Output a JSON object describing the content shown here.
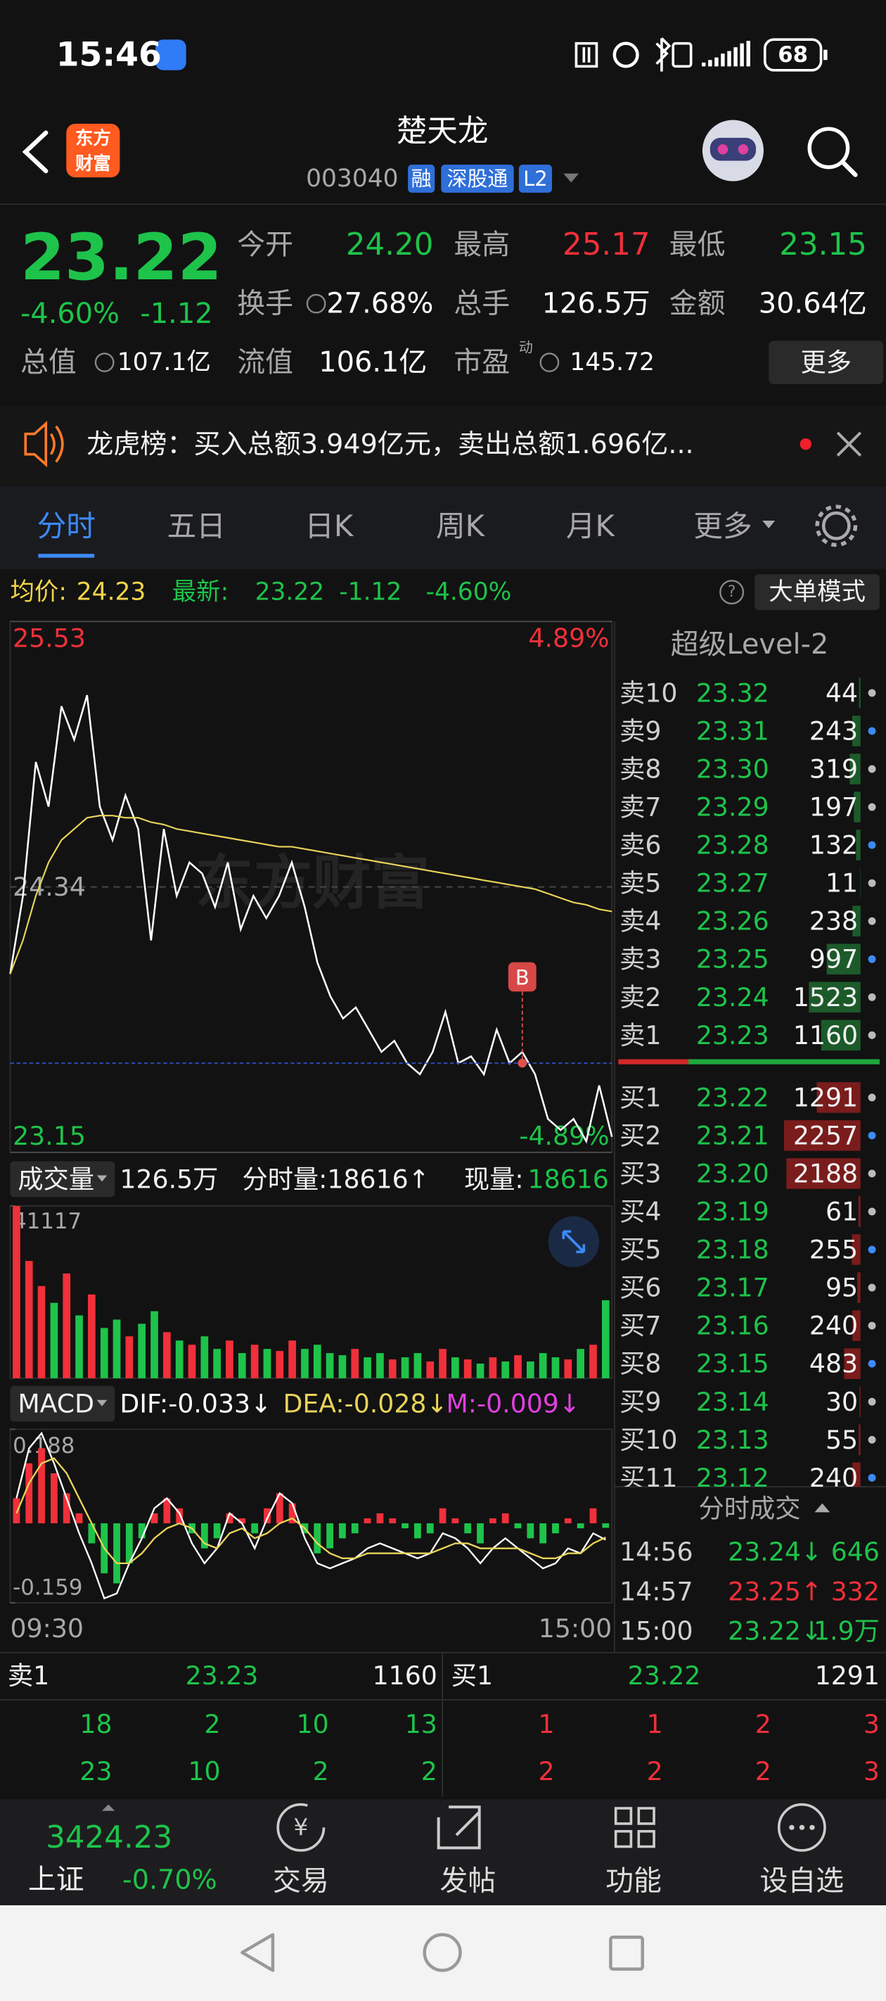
{
  "status_bar": {
    "time": "15:46",
    "battery": "68"
  },
  "header": {
    "logo": [
      "东方",
      "财富"
    ],
    "title": "楚天龙",
    "code": "003040",
    "badges": [
      "融",
      "深股通",
      "L2"
    ]
  },
  "quote": {
    "price": "23.22",
    "change_pct": "-4.60%",
    "change": "-1.12",
    "fields": [
      {
        "label": "今开",
        "value": "24.20",
        "color": "#1ec34a"
      },
      {
        "label": "最高",
        "value": "25.17",
        "color": "#f0303a"
      },
      {
        "label": "最低",
        "value": "23.15",
        "color": "#1ec34a"
      },
      {
        "label": "换手",
        "value": "27.68%",
        "color": "#ffffff"
      },
      {
        "label": "总手",
        "value": "126.5万",
        "color": "#ffffff"
      },
      {
        "label": "金额",
        "value": "30.64亿",
        "color": "#ffffff"
      },
      {
        "label": "总值",
        "value": "107.1亿",
        "color": "#ffffff"
      },
      {
        "label": "流值",
        "value": "106.1亿",
        "color": "#ffffff"
      },
      {
        "label": "市盈",
        "sup": "动",
        "value": "145.72",
        "color": "#ffffff"
      }
    ],
    "more": "更多"
  },
  "notice": "龙虎榜：买入总额3.949亿元，卖出总额1.696亿...",
  "tabs": {
    "items": [
      "分时",
      "五日",
      "日K",
      "周K",
      "月K",
      "更多"
    ],
    "active": 0
  },
  "summary": {
    "avg_label": "均价:",
    "avg": "24.23",
    "latest_label": "最新:",
    "latest": "23.22",
    "change": "-1.12",
    "change_pct": "-4.60%",
    "mode": "大单模式"
  },
  "chart_data": [
    {
      "type": "line",
      "watermark": "东方财富",
      "x": [
        "09:30",
        null,
        null,
        null,
        null,
        null,
        null,
        null,
        null,
        null,
        null,
        null,
        null,
        null,
        null,
        null,
        null,
        null,
        null,
        null,
        null,
        null,
        null,
        null,
        null,
        null,
        null,
        null,
        null,
        null,
        null,
        null,
        null,
        null,
        null,
        null,
        null,
        null,
        null,
        null,
        null,
        null,
        null,
        null,
        null,
        null,
        null,
        "15:00"
      ],
      "ylim": [
        23.15,
        25.53
      ],
      "yticks": [
        23.15,
        24.34,
        25.53
      ],
      "y2lim": [
        -4.89,
        4.89
      ],
      "y2ticks": [
        {
          "value": -4.89,
          "label": "-4.89%"
        },
        {
          "value": 4.89,
          "label": "4.89%"
        }
      ],
      "series": [
        {
          "color": "#ffffff",
          "values": [
            23.95,
            24.3,
            24.9,
            24.7,
            25.15,
            25.0,
            25.2,
            24.7,
            24.55,
            24.75,
            24.6,
            24.1,
            24.6,
            24.3,
            24.45,
            24.4,
            24.25,
            24.45,
            24.15,
            24.3,
            24.2,
            24.3,
            24.45,
            24.25,
            24.0,
            23.85,
            23.75,
            23.8,
            23.7,
            23.6,
            23.65,
            23.55,
            23.5,
            23.6,
            23.78,
            23.55,
            23.58,
            23.5,
            23.7,
            23.55,
            23.6,
            23.5,
            23.3,
            23.25,
            23.3,
            23.2,
            23.45,
            23.22
          ]
        },
        {
          "color": "#e8d35a",
          "values": [
            23.95,
            24.1,
            24.3,
            24.45,
            24.55,
            24.6,
            24.65,
            24.66,
            24.66,
            24.65,
            24.65,
            24.63,
            24.62,
            24.6,
            24.59,
            24.58,
            24.57,
            24.56,
            24.55,
            24.54,
            24.53,
            24.52,
            24.52,
            24.51,
            24.5,
            24.49,
            24.48,
            24.47,
            24.46,
            24.45,
            24.44,
            24.43,
            24.42,
            24.41,
            24.4,
            24.39,
            24.38,
            24.37,
            24.36,
            24.35,
            24.34,
            24.33,
            24.31,
            24.29,
            24.27,
            24.26,
            24.24,
            24.23
          ]
        }
      ],
      "annotation": {
        "label": "B",
        "index": 40,
        "value": 23.55
      }
    },
    {
      "type": "bar",
      "title": "成交量",
      "total": "126.5万",
      "period_label": "分时量:18616↑",
      "current_label": "现量:",
      "current": 18616,
      "ylim": [
        0,
        41117
      ],
      "yticks": [
        41117
      ],
      "colors": {
        "up": "#f0303a",
        "down": "#1ec34a"
      },
      "values": [
        41117,
        28000,
        22000,
        18000,
        25000,
        15000,
        20000,
        12000,
        14000,
        10000,
        13000,
        16000,
        11000,
        9000,
        8000,
        10000,
        7000,
        9000,
        6000,
        8000,
        7000,
        6500,
        9000,
        7000,
        8000,
        6000,
        5500,
        7000,
        5000,
        6000,
        4500,
        5000,
        6000,
        4000,
        7000,
        5000,
        4500,
        3500,
        5000,
        4000,
        5500,
        4000,
        6000,
        5000,
        4500,
        7000,
        8000,
        18616
      ]
    },
    {
      "type": "macd",
      "title": "MACD",
      "ylim": [
        -0.159,
        0.188
      ],
      "yticks": [
        -0.159,
        0.188
      ],
      "colors": {
        "up": "#f0303a",
        "down": "#1ec34a"
      },
      "series": [
        {
          "label": "DIF:-0.033↓",
          "color": "#ffffff",
          "values": [
            0.05,
            0.15,
            0.18,
            0.12,
            0.05,
            -0.02,
            -0.08,
            -0.15,
            -0.14,
            -0.08,
            -0.03,
            0.03,
            0.05,
            0.02,
            -0.04,
            -0.08,
            -0.05,
            0.02,
            0.0,
            -0.05,
            0.01,
            0.06,
            0.04,
            -0.03,
            -0.08,
            -0.09,
            -0.08,
            -0.07,
            -0.05,
            -0.04,
            -0.05,
            -0.06,
            -0.07,
            -0.06,
            -0.02,
            -0.03,
            -0.05,
            -0.08,
            -0.05,
            -0.03,
            -0.05,
            -0.07,
            -0.09,
            -0.08,
            -0.05,
            -0.06,
            -0.02,
            -0.033
          ]
        },
        {
          "label": "DEA:-0.028↓",
          "color": "#e8d35a",
          "values": [
            0.02,
            0.08,
            0.12,
            0.13,
            0.1,
            0.05,
            0.0,
            -0.05,
            -0.08,
            -0.08,
            -0.06,
            -0.03,
            -0.01,
            0.0,
            -0.01,
            -0.04,
            -0.05,
            -0.02,
            -0.01,
            -0.03,
            -0.02,
            0.0,
            0.01,
            -0.01,
            -0.04,
            -0.06,
            -0.07,
            -0.07,
            -0.06,
            -0.06,
            -0.06,
            -0.06,
            -0.06,
            -0.06,
            -0.05,
            -0.04,
            -0.04,
            -0.05,
            -0.05,
            -0.05,
            -0.05,
            -0.06,
            -0.07,
            -0.07,
            -0.06,
            -0.06,
            -0.04,
            -0.028
          ]
        },
        {
          "label": "M:-0.009↓",
          "color": "#e040e0",
          "values": [
            0.05,
            0.12,
            0.15,
            0.1,
            0.06,
            0.02,
            -0.04,
            -0.1,
            -0.12,
            -0.08,
            -0.03,
            0.02,
            0.05,
            0.03,
            -0.02,
            -0.05,
            -0.03,
            0.02,
            0.01,
            -0.02,
            0.03,
            0.06,
            0.04,
            -0.02,
            -0.06,
            -0.05,
            -0.03,
            -0.02,
            0.01,
            0.02,
            0.01,
            -0.01,
            -0.03,
            -0.02,
            0.03,
            0.01,
            -0.02,
            -0.04,
            0.01,
            0.02,
            -0.01,
            -0.03,
            -0.04,
            -0.02,
            0.01,
            -0.01,
            0.03,
            -0.009
          ]
        }
      ]
    }
  ],
  "order_book": {
    "title": "超级Level-2",
    "asks": [
      {
        "label": "卖10",
        "price": "23.32",
        "volume": 44
      },
      {
        "label": "卖9",
        "price": "23.31",
        "volume": 243
      },
      {
        "label": "卖8",
        "price": "23.30",
        "volume": 319
      },
      {
        "label": "卖7",
        "price": "23.29",
        "volume": 197
      },
      {
        "label": "卖6",
        "price": "23.28",
        "volume": 132
      },
      {
        "label": "卖5",
        "price": "23.27",
        "volume": 11
      },
      {
        "label": "卖4",
        "price": "23.26",
        "volume": 238
      },
      {
        "label": "卖3",
        "price": "23.25",
        "volume": 997
      },
      {
        "label": "卖2",
        "price": "23.24",
        "volume": 1523
      },
      {
        "label": "卖1",
        "price": "23.23",
        "volume": 1160
      }
    ],
    "bids": [
      {
        "label": "买1",
        "price": "23.22",
        "volume": 1291
      },
      {
        "label": "买2",
        "price": "23.21",
        "volume": 2257
      },
      {
        "label": "买3",
        "price": "23.20",
        "volume": 2188
      },
      {
        "label": "买4",
        "price": "23.19",
        "volume": 61
      },
      {
        "label": "买5",
        "price": "23.18",
        "volume": 255
      },
      {
        "label": "买6",
        "price": "23.17",
        "volume": 95
      },
      {
        "label": "买7",
        "price": "23.16",
        "volume": 240
      },
      {
        "label": "买8",
        "price": "23.15",
        "volume": 483
      },
      {
        "label": "买9",
        "price": "23.14",
        "volume": 30
      },
      {
        "label": "买10",
        "price": "23.13",
        "volume": 55
      },
      {
        "label": "买11",
        "price": "23.12",
        "volume": 240
      }
    ]
  },
  "trades": {
    "title": "分时成交",
    "rows": [
      {
        "time": "14:56",
        "price": "23.24↓",
        "volume": "646",
        "color": "#1ec34a"
      },
      {
        "time": "14:57",
        "price": "23.25↑",
        "volume": "332",
        "color": "#f0303a"
      },
      {
        "time": "15:00",
        "price": "23.22↓",
        "volume": "1.9万",
        "color": "#1ec34a"
      }
    ]
  },
  "depth": {
    "ask": {
      "label": "卖1",
      "price": "23.23",
      "volume": 1160
    },
    "bid": {
      "label": "买1",
      "price": "23.22",
      "volume": 1291
    },
    "ask_queue": [
      [
        18,
        2,
        10,
        13
      ],
      [
        23,
        10,
        2,
        2
      ]
    ],
    "bid_queue": [
      [
        1,
        1,
        2,
        3
      ],
      [
        2,
        2,
        2,
        3
      ]
    ]
  },
  "bottom_nav": {
    "index_value": "3424.23",
    "index_name": "上证",
    "index_change": "-0.70%",
    "items": [
      "交易",
      "发帖",
      "功能",
      "设自选"
    ]
  }
}
